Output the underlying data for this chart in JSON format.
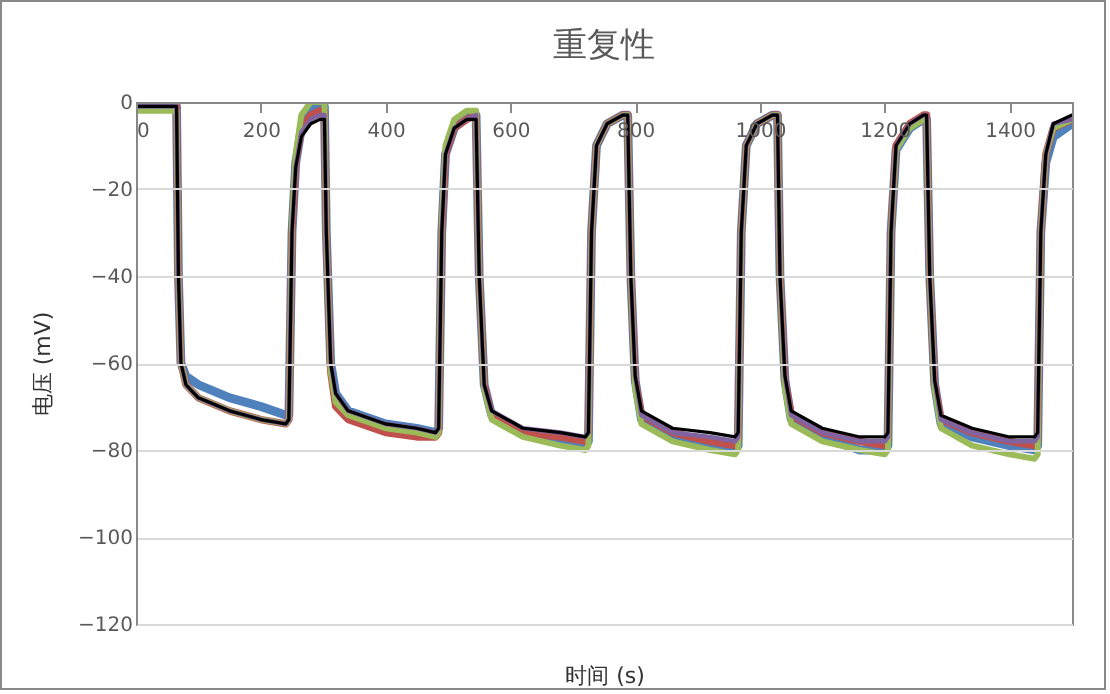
{
  "chart_data": {
    "type": "line",
    "title": "重复性",
    "xlabel": "时间 (s)",
    "ylabel": "电压 (mV)",
    "xlim": [
      0,
      1500
    ],
    "xticks": [
      0,
      200,
      400,
      600,
      800,
      1000,
      1200,
      1400
    ],
    "ylim": [
      -120,
      0
    ],
    "yticks": [
      -120,
      -100,
      -80,
      -60,
      -40,
      -20,
      0
    ],
    "grid": "y",
    "legend": false,
    "marker": "none",
    "line_style": "solid",
    "x": [
      0,
      60,
      65,
      68,
      72,
      80,
      100,
      150,
      200,
      240,
      245,
      250,
      256,
      265,
      280,
      295,
      302,
      305,
      312,
      320,
      340,
      400,
      450,
      480,
      485,
      490,
      496,
      510,
      530,
      545,
      550,
      558,
      570,
      620,
      680,
      720,
      725,
      730,
      738,
      755,
      780,
      788,
      793,
      800,
      810,
      860,
      920,
      960,
      965,
      970,
      978,
      995,
      1020,
      1028,
      1032,
      1040,
      1050,
      1100,
      1160,
      1200,
      1205,
      1210,
      1218,
      1240,
      1262,
      1267,
      1272,
      1280,
      1290,
      1340,
      1400,
      1440,
      1445,
      1450,
      1458,
      1470,
      1500
    ],
    "series": [
      {
        "color": "#4f81bd",
        "values": [
          -1,
          -1,
          -1,
          -40,
          -60,
          -63,
          -65,
          -68,
          -70,
          -72,
          -72,
          -30,
          -14,
          -6,
          -2,
          -1,
          -1,
          -30,
          -60,
          -67,
          -71,
          -74,
          -75,
          -76,
          -75,
          -30,
          -12,
          -6,
          -3,
          -3,
          -40,
          -65,
          -72,
          -76,
          -78,
          -79,
          -78,
          -30,
          -10,
          -5,
          -3,
          -3,
          -40,
          -64,
          -73,
          -77,
          -79,
          -80,
          -79,
          -30,
          -10,
          -5,
          -3,
          -3,
          -40,
          -64,
          -73,
          -77,
          -80,
          -80,
          -79,
          -30,
          -11,
          -6,
          -4,
          -4,
          -40,
          -65,
          -74,
          -77,
          -79,
          -80,
          -79,
          -30,
          -14,
          -8,
          -5
        ]
      },
      {
        "color": "#c0504d",
        "values": [
          -1,
          -1,
          -1,
          -40,
          -60,
          -65,
          -68,
          -71,
          -73,
          -74,
          -73,
          -30,
          -14,
          -6,
          -3,
          -2,
          -2,
          -30,
          -62,
          -70,
          -73,
          -76,
          -77,
          -77,
          -76,
          -30,
          -12,
          -6,
          -4,
          -3,
          -40,
          -65,
          -72,
          -76,
          -77,
          -78,
          -77,
          -30,
          -10,
          -5,
          -3,
          -3,
          -40,
          -64,
          -72,
          -76,
          -78,
          -79,
          -78,
          -30,
          -10,
          -5,
          -3,
          -3,
          -40,
          -64,
          -72,
          -76,
          -78,
          -79,
          -78,
          -30,
          -10,
          -5,
          -3,
          -3,
          -40,
          -65,
          -73,
          -76,
          -78,
          -79,
          -78,
          -30,
          -12,
          -6,
          -4
        ]
      },
      {
        "color": "#9bbb59",
        "values": [
          -2,
          -2,
          -2,
          -40,
          -60,
          -65,
          -68,
          -71,
          -73,
          -74,
          -73,
          -28,
          -12,
          -3,
          0,
          0,
          0,
          -30,
          -62,
          -69,
          -72,
          -75,
          -76,
          -77,
          -76,
          -28,
          -10,
          -4,
          -2,
          -2,
          -40,
          -66,
          -73,
          -77,
          -79,
          -80,
          -79,
          -30,
          -10,
          -5,
          -3,
          -3,
          -40,
          -66,
          -74,
          -78,
          -80,
          -81,
          -80,
          -30,
          -10,
          -5,
          -3,
          -3,
          -40,
          -66,
          -74,
          -78,
          -80,
          -81,
          -80,
          -30,
          -11,
          -6,
          -4,
          -4,
          -40,
          -66,
          -75,
          -79,
          -81,
          -82,
          -81,
          -30,
          -12,
          -6,
          -4
        ]
      },
      {
        "color": "#8064a2",
        "values": [
          -1,
          -1,
          -1,
          -40,
          -60,
          -65,
          -68,
          -71,
          -73,
          -74,
          -73,
          -30,
          -15,
          -7,
          -4,
          -3,
          -3,
          -30,
          -60,
          -67,
          -71,
          -74,
          -75,
          -76,
          -75,
          -30,
          -12,
          -6,
          -4,
          -3,
          -40,
          -65,
          -71,
          -75,
          -76,
          -77,
          -76,
          -30,
          -10,
          -5,
          -3,
          -3,
          -40,
          -63,
          -72,
          -76,
          -77,
          -78,
          -77,
          -30,
          -10,
          -5,
          -3,
          -3,
          -40,
          -63,
          -72,
          -76,
          -78,
          -78,
          -77,
          -30,
          -10,
          -5,
          -3,
          -3,
          -40,
          -64,
          -73,
          -76,
          -78,
          -78,
          -77,
          -30,
          -12,
          -5,
          -4
        ]
      },
      {
        "color": "#000000",
        "values": [
          -1,
          -1,
          -1,
          -40,
          -60,
          -65,
          -68,
          -71,
          -73,
          -74,
          -73,
          -30,
          -15,
          -8,
          -5,
          -4,
          -4,
          -30,
          -60,
          -67,
          -71,
          -74,
          -75,
          -76,
          -75,
          -30,
          -12,
          -6,
          -4,
          -4,
          -40,
          -65,
          -71,
          -75,
          -76,
          -77,
          -76,
          -30,
          -10,
          -5,
          -3,
          -3,
          -40,
          -63,
          -71,
          -75,
          -76,
          -77,
          -76,
          -30,
          -10,
          -5,
          -3,
          -3,
          -40,
          -63,
          -71,
          -75,
          -77,
          -77,
          -76,
          -30,
          -10,
          -5,
          -3,
          -3,
          -40,
          -64,
          -72,
          -75,
          -77,
          -77,
          -76,
          -30,
          -12,
          -5,
          -3
        ]
      }
    ]
  }
}
